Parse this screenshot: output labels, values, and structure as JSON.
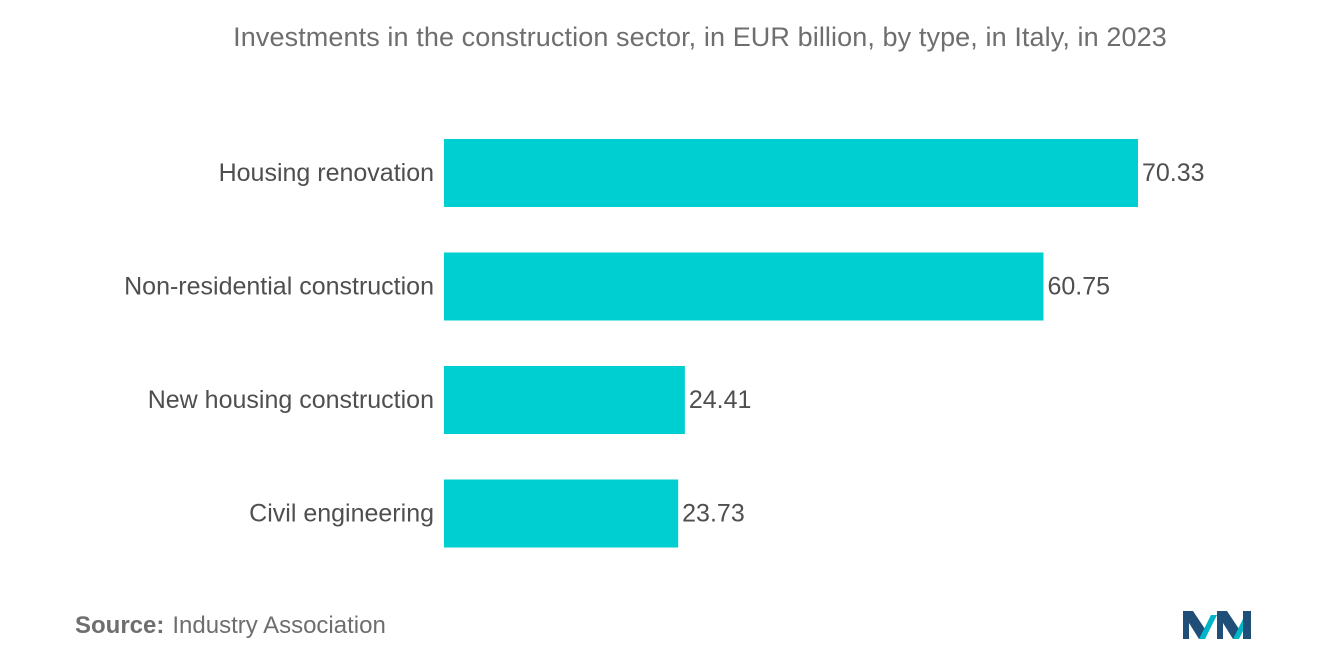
{
  "chart_data": {
    "type": "bar",
    "orientation": "horizontal",
    "title": "Investments in the construction sector, in EUR billion, by type, in Italy, in 2023",
    "categories": [
      "Housing renovation",
      "Non-residential construction",
      "New housing construction",
      "Civil engineering"
    ],
    "values": [
      70.33,
      60.75,
      24.41,
      23.73
    ],
    "value_labels": [
      "70.33",
      "60.75",
      "24.41",
      "23.73"
    ],
    "xlabel": "",
    "ylabel": "",
    "xlim": [
      0,
      70.33
    ],
    "grid": false,
    "bar_color": "#00cfd1"
  },
  "source": {
    "label": "Source:",
    "text": "Industry Association"
  },
  "logo": {
    "icon": "mordor-intelligence-logo-icon",
    "colors": [
      "#1f4e79",
      "#00b5c8"
    ]
  }
}
